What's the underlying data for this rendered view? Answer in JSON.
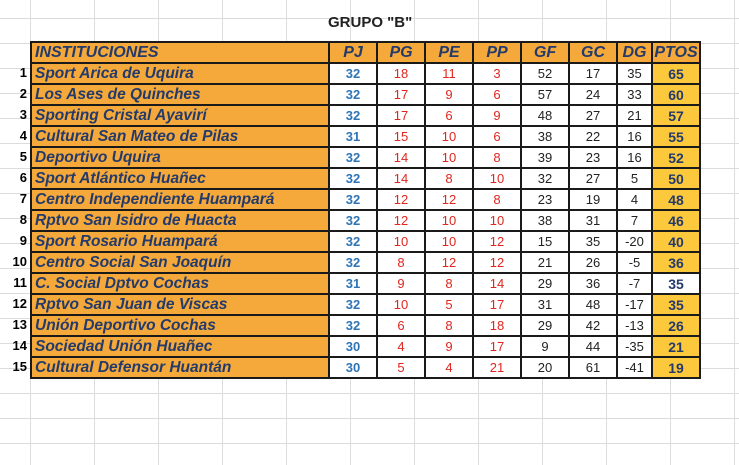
{
  "title": "GRUPO \"B\"",
  "headers": {
    "inst": "INSTITUCIONES",
    "pj": "PJ",
    "pg": "PG",
    "pe": "PE",
    "pp": "PP",
    "gf": "GF",
    "gc": "GC",
    "dg": "DG",
    "ptos": "PTOS"
  },
  "rows": [
    {
      "n": "1",
      "name": "Sport Arica de Uquira",
      "pj": "32",
      "pg": "18",
      "pe": "11",
      "pp": "3",
      "gf": "52",
      "gc": "17",
      "dg": "35",
      "ptos": "65"
    },
    {
      "n": "2",
      "name": "Los Ases de Quinches",
      "pj": "32",
      "pg": "17",
      "pe": "9",
      "pp": "6",
      "gf": "57",
      "gc": "24",
      "dg": "33",
      "ptos": "60"
    },
    {
      "n": "3",
      "name": "Sporting Cristal Ayavirí",
      "pj": "32",
      "pg": "17",
      "pe": "6",
      "pp": "9",
      "gf": "48",
      "gc": "27",
      "dg": "21",
      "ptos": "57"
    },
    {
      "n": "4",
      "name": "Cultural San Mateo de Pilas",
      "pj": "31",
      "pg": "15",
      "pe": "10",
      "pp": "6",
      "gf": "38",
      "gc": "22",
      "dg": "16",
      "ptos": "55"
    },
    {
      "n": "5",
      "name": "Deportivo Uquira",
      "pj": "32",
      "pg": "14",
      "pe": "10",
      "pp": "8",
      "gf": "39",
      "gc": "23",
      "dg": "16",
      "ptos": "52"
    },
    {
      "n": "6",
      "name": "Sport Atlántico Huañec",
      "pj": "32",
      "pg": "14",
      "pe": "8",
      "pp": "10",
      "gf": "32",
      "gc": "27",
      "dg": "5",
      "ptos": "50"
    },
    {
      "n": "7",
      "name": "Centro Independiente Huampará",
      "pj": "32",
      "pg": "12",
      "pe": "12",
      "pp": "8",
      "gf": "23",
      "gc": "19",
      "dg": "4",
      "ptos": "48"
    },
    {
      "n": "8",
      "name": "Rptvo San Isidro de Huacta",
      "pj": "32",
      "pg": "12",
      "pe": "10",
      "pp": "10",
      "gf": "38",
      "gc": "31",
      "dg": "7",
      "ptos": "46"
    },
    {
      "n": "9",
      "name": "Sport Rosario Huampará",
      "pj": "32",
      "pg": "10",
      "pe": "10",
      "pp": "12",
      "gf": "15",
      "gc": "35",
      "dg": "-20",
      "ptos": "40"
    },
    {
      "n": "10",
      "name": "Centro Social San Joaquín",
      "pj": "32",
      "pg": "8",
      "pe": "12",
      "pp": "12",
      "gf": "21",
      "gc": "26",
      "dg": "-5",
      "ptos": "36"
    },
    {
      "n": "11",
      "name": "C. Social Dptvo Cochas",
      "pj": "31",
      "pg": "9",
      "pe": "8",
      "pp": "14",
      "gf": "29",
      "gc": "36",
      "dg": "-7",
      "ptos": "35"
    },
    {
      "n": "12",
      "name": "Rptvo San Juan de Viscas",
      "pj": "32",
      "pg": "10",
      "pe": "5",
      "pp": "17",
      "gf": "31",
      "gc": "48",
      "dg": "-17",
      "ptos": "35"
    },
    {
      "n": "13",
      "name": "Unión Deportivo Cochas",
      "pj": "32",
      "pg": "6",
      "pe": "8",
      "pp": "18",
      "gf": "29",
      "gc": "42",
      "dg": "-13",
      "ptos": "26"
    },
    {
      "n": "14",
      "name": "Sociedad Unión Huañec",
      "pj": "30",
      "pg": "4",
      "pe": "9",
      "pp": "17",
      "gf": "9",
      "gc": "44",
      "dg": "-35",
      "ptos": "21"
    },
    {
      "n": "15",
      "name": "Cultural Defensor Huantán",
      "pj": "30",
      "pg": "5",
      "pe": "4",
      "pp": "21",
      "gf": "20",
      "gc": "61",
      "dg": "-41",
      "ptos": "19"
    }
  ],
  "colors": {
    "header_fill": "#f4a93a",
    "points_fill": "#fcc83c",
    "team_text": "#233a6b",
    "pj_text": "#2e74b5",
    "stats_text": "#e0261f"
  }
}
